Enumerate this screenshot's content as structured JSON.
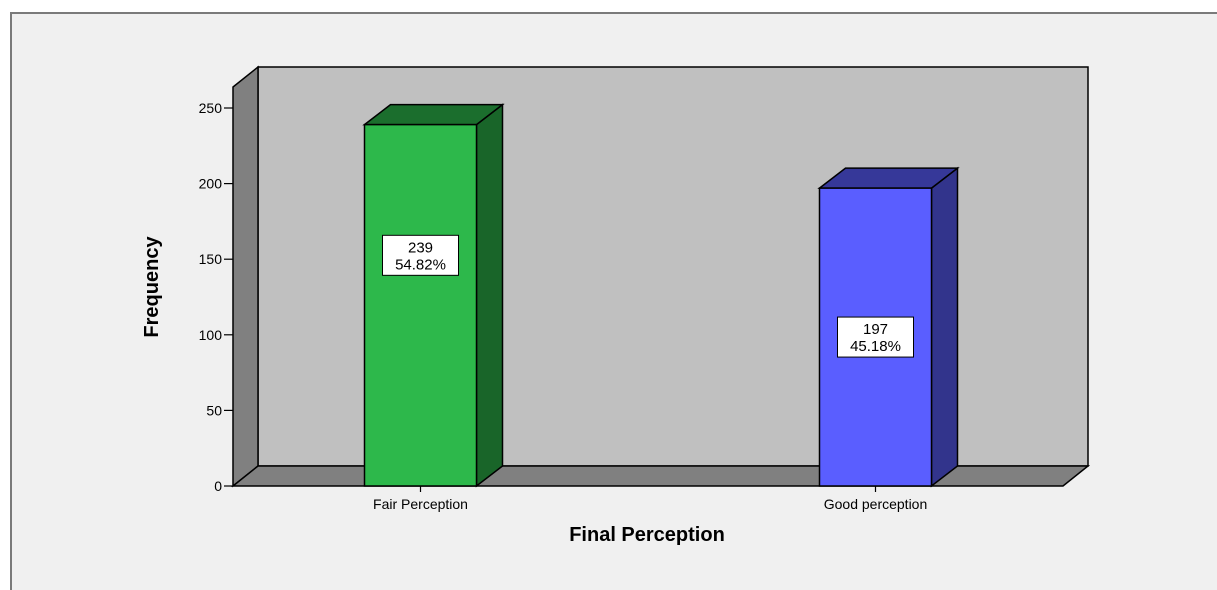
{
  "chart_data": {
    "type": "bar",
    "style": "3d",
    "categories": [
      "Fair Perception",
      "Good perception"
    ],
    "values": [
      239,
      197
    ],
    "percent_labels": [
      "54.82%",
      "45.18%"
    ],
    "colors": [
      "#2db84b",
      "#5a5eff"
    ],
    "xlabel": "Final Perception",
    "ylabel": "Frequency",
    "ylim": [
      0,
      250
    ],
    "yticks": [
      0,
      50,
      100,
      150,
      200,
      250
    ],
    "grid": false,
    "legend": "none",
    "plot_background": "#c0c0c0",
    "wall_side_color": "#808080",
    "floor_color": "#808080"
  }
}
